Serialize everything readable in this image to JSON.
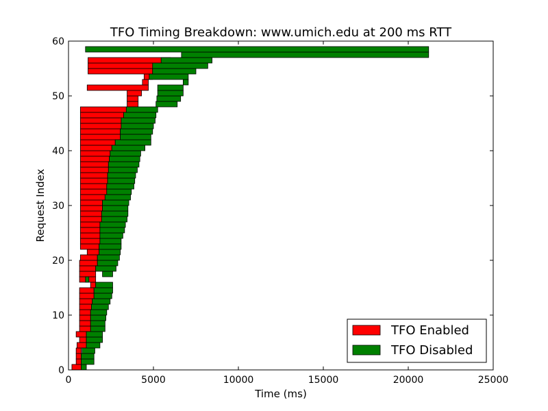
{
  "chart_data": {
    "type": "bar",
    "orientation": "horizontal",
    "title": "TFO Timing Breakdown: www.umich.edu at 200 ms RTT",
    "xlabel": "Time (ms)",
    "ylabel": "Request Index",
    "xlim": [
      0,
      25000
    ],
    "ylim": [
      0,
      60
    ],
    "xticks": [
      0,
      5000,
      10000,
      15000,
      20000,
      25000
    ],
    "yticks": [
      0,
      10,
      20,
      30,
      40,
      50,
      60
    ],
    "legend_position": "lower-right",
    "series": [
      {
        "name": "TFO Enabled",
        "color": "#ff0000",
        "bars": [
          {
            "i": 0,
            "start": 200,
            "end": 750
          },
          {
            "i": 1,
            "start": 450,
            "end": 750
          },
          {
            "i": 2,
            "start": 450,
            "end": 750
          },
          {
            "i": 3,
            "start": 450,
            "end": 750
          },
          {
            "i": 4,
            "start": 500,
            "end": 1050
          },
          {
            "i": 5,
            "start": 650,
            "end": 1050
          },
          {
            "i": 6,
            "start": 450,
            "end": 1050
          },
          {
            "i": 7,
            "start": 650,
            "end": 1300
          },
          {
            "i": 8,
            "start": 650,
            "end": 1300
          },
          {
            "i": 9,
            "start": 650,
            "end": 1300
          },
          {
            "i": 10,
            "start": 650,
            "end": 1300
          },
          {
            "i": 11,
            "start": 650,
            "end": 1350
          },
          {
            "i": 12,
            "start": 650,
            "end": 1400
          },
          {
            "i": 13,
            "start": 650,
            "end": 1500
          },
          {
            "i": 14,
            "start": 650,
            "end": 1500
          },
          {
            "i": 15,
            "start": 1300,
            "end": 1600
          },
          {
            "i": 16,
            "start": 650,
            "end": 1600
          },
          {
            "i": 17,
            "start": 650,
            "end": 1600
          },
          {
            "i": 18,
            "start": 650,
            "end": 1600
          },
          {
            "i": 19,
            "start": 650,
            "end": 1700
          },
          {
            "i": 20,
            "start": 700,
            "end": 1700
          },
          {
            "i": 21,
            "start": 1100,
            "end": 1800
          },
          {
            "i": 22,
            "start": 700,
            "end": 1800
          },
          {
            "i": 23,
            "start": 700,
            "end": 1850
          },
          {
            "i": 24,
            "start": 700,
            "end": 1850
          },
          {
            "i": 25,
            "start": 700,
            "end": 1850
          },
          {
            "i": 26,
            "start": 700,
            "end": 1850
          },
          {
            "i": 27,
            "start": 700,
            "end": 1950
          },
          {
            "i": 28,
            "start": 700,
            "end": 1950
          },
          {
            "i": 29,
            "start": 700,
            "end": 2000
          },
          {
            "i": 30,
            "start": 700,
            "end": 2000
          },
          {
            "i": 31,
            "start": 700,
            "end": 2150
          },
          {
            "i": 32,
            "start": 700,
            "end": 2250
          },
          {
            "i": 33,
            "start": 700,
            "end": 2250
          },
          {
            "i": 34,
            "start": 700,
            "end": 2300
          },
          {
            "i": 35,
            "start": 700,
            "end": 2300
          },
          {
            "i": 36,
            "start": 700,
            "end": 2350
          },
          {
            "i": 37,
            "start": 700,
            "end": 2350
          },
          {
            "i": 38,
            "start": 700,
            "end": 2400
          },
          {
            "i": 39,
            "start": 700,
            "end": 2450
          },
          {
            "i": 40,
            "start": 700,
            "end": 2550
          },
          {
            "i": 41,
            "start": 700,
            "end": 2750
          },
          {
            "i": 42,
            "start": 700,
            "end": 3050
          },
          {
            "i": 43,
            "start": 700,
            "end": 3050
          },
          {
            "i": 44,
            "start": 700,
            "end": 3100
          },
          {
            "i": 45,
            "start": 700,
            "end": 3100
          },
          {
            "i": 46,
            "start": 700,
            "end": 3250
          },
          {
            "i": 47,
            "start": 700,
            "end": 3400
          },
          {
            "i": 48,
            "start": 3450,
            "end": 4100
          },
          {
            "i": 49,
            "start": 3450,
            "end": 4100
          },
          {
            "i": 50,
            "start": 3450,
            "end": 4300
          },
          {
            "i": 51,
            "start": 1100,
            "end": 4700
          },
          {
            "i": 52,
            "start": 4350,
            "end": 4700
          },
          {
            "i": 53,
            "start": 4450,
            "end": 4950
          },
          {
            "i": 54,
            "start": 1150,
            "end": 4950
          },
          {
            "i": 55,
            "start": 1150,
            "end": 5450
          },
          {
            "i": 56,
            "start": 1150,
            "end": 6000
          },
          {
            "i": 57,
            "start": 1000,
            "end": 1000
          }
        ]
      },
      {
        "name": "TFO Disabled",
        "color": "#008000",
        "bars": [
          {
            "i": 0,
            "start": 750,
            "end": 1050
          },
          {
            "i": 1,
            "start": 750,
            "end": 1500
          },
          {
            "i": 2,
            "start": 750,
            "end": 1500
          },
          {
            "i": 3,
            "start": 800,
            "end": 1550
          },
          {
            "i": 4,
            "start": 1050,
            "end": 1850
          },
          {
            "i": 5,
            "start": 1050,
            "end": 2000
          },
          {
            "i": 6,
            "start": 1050,
            "end": 2000
          },
          {
            "i": 7,
            "start": 1300,
            "end": 2150
          },
          {
            "i": 8,
            "start": 1300,
            "end": 2150
          },
          {
            "i": 9,
            "start": 1300,
            "end": 2200
          },
          {
            "i": 10,
            "start": 1300,
            "end": 2250
          },
          {
            "i": 11,
            "start": 1350,
            "end": 2350
          },
          {
            "i": 12,
            "start": 1400,
            "end": 2450
          },
          {
            "i": 13,
            "start": 1500,
            "end": 2550
          },
          {
            "i": 14,
            "start": 1500,
            "end": 2600
          },
          {
            "i": 15,
            "start": 1600,
            "end": 2600
          },
          {
            "i": 16,
            "start": 1000,
            "end": 1200
          },
          {
            "i": 17,
            "start": 2000,
            "end": 2600
          },
          {
            "i": 18,
            "start": 1600,
            "end": 2800
          },
          {
            "i": 19,
            "start": 1700,
            "end": 2900
          },
          {
            "i": 20,
            "start": 1700,
            "end": 3000
          },
          {
            "i": 21,
            "start": 1800,
            "end": 3050
          },
          {
            "i": 22,
            "start": 1800,
            "end": 3100
          },
          {
            "i": 23,
            "start": 1850,
            "end": 3100
          },
          {
            "i": 24,
            "start": 1850,
            "end": 3200
          },
          {
            "i": 25,
            "start": 1850,
            "end": 3300
          },
          {
            "i": 26,
            "start": 1850,
            "end": 3350
          },
          {
            "i": 27,
            "start": 1950,
            "end": 3450
          },
          {
            "i": 28,
            "start": 1950,
            "end": 3500
          },
          {
            "i": 29,
            "start": 2000,
            "end": 3500
          },
          {
            "i": 30,
            "start": 2000,
            "end": 3550
          },
          {
            "i": 31,
            "start": 2150,
            "end": 3650
          },
          {
            "i": 32,
            "start": 2250,
            "end": 3700
          },
          {
            "i": 33,
            "start": 2250,
            "end": 3850
          },
          {
            "i": 34,
            "start": 2300,
            "end": 3900
          },
          {
            "i": 35,
            "start": 2300,
            "end": 3950
          },
          {
            "i": 36,
            "start": 2350,
            "end": 4050
          },
          {
            "i": 37,
            "start": 2350,
            "end": 4150
          },
          {
            "i": 38,
            "start": 2400,
            "end": 4200
          },
          {
            "i": 39,
            "start": 2450,
            "end": 4250
          },
          {
            "i": 40,
            "start": 2550,
            "end": 4500
          },
          {
            "i": 41,
            "start": 2750,
            "end": 4850
          },
          {
            "i": 42,
            "start": 3050,
            "end": 4850
          },
          {
            "i": 43,
            "start": 3050,
            "end": 4950
          },
          {
            "i": 44,
            "start": 3100,
            "end": 5000
          },
          {
            "i": 45,
            "start": 3100,
            "end": 5100
          },
          {
            "i": 46,
            "start": 3250,
            "end": 5150
          },
          {
            "i": 47,
            "start": 3400,
            "end": 5250
          },
          {
            "i": 48,
            "start": 5150,
            "end": 6400
          },
          {
            "i": 49,
            "start": 5200,
            "end": 6600
          },
          {
            "i": 50,
            "start": 5250,
            "end": 6750
          },
          {
            "i": 51,
            "start": 5250,
            "end": 6750
          },
          {
            "i": 52,
            "start": 6750,
            "end": 7050
          },
          {
            "i": 53,
            "start": 4750,
            "end": 7050
          },
          {
            "i": 54,
            "start": 4950,
            "end": 7500
          },
          {
            "i": 55,
            "start": 4950,
            "end": 8200
          },
          {
            "i": 56,
            "start": 5450,
            "end": 8450
          },
          {
            "i": 57,
            "start": 6650,
            "end": 21200
          },
          {
            "i": 58,
            "start": 1000,
            "end": 21200
          }
        ]
      }
    ]
  }
}
